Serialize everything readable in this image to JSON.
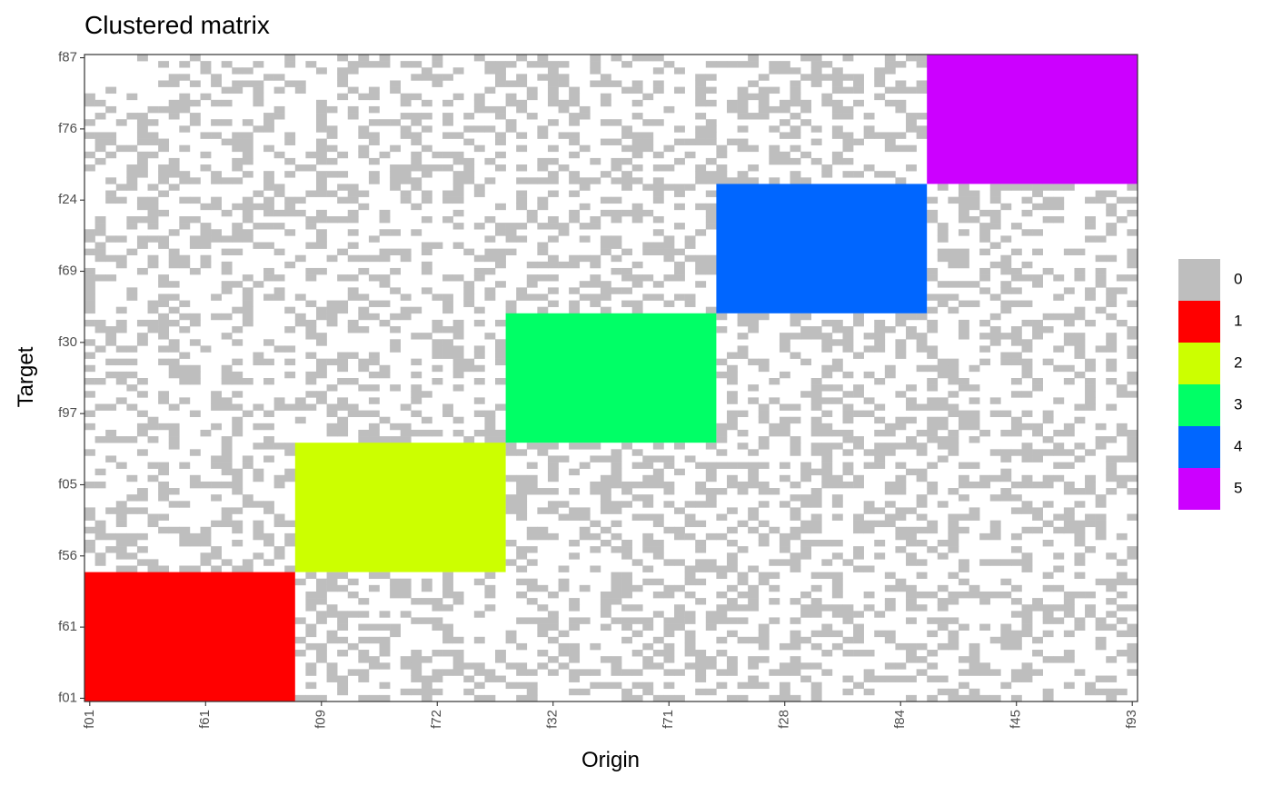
{
  "chart_data": {
    "type": "heatmap",
    "title": "Clustered matrix",
    "xlabel": "Origin",
    "ylabel": "Target",
    "x_tick_labels": [
      "f01",
      "f61",
      "f09",
      "f72",
      "f32",
      "f71",
      "f28",
      "f84",
      "f45",
      "f93"
    ],
    "y_tick_labels": [
      "f01",
      "f61",
      "f56",
      "f05",
      "f97",
      "f30",
      "f69",
      "f24",
      "f76",
      "f87"
    ],
    "n_rows": 100,
    "n_cols": 100,
    "background_value": 0,
    "background_fill_fraction": 0.35,
    "clusters": [
      {
        "value": 1,
        "rows": [
          1,
          20
        ],
        "cols": [
          1,
          20
        ]
      },
      {
        "value": 2,
        "rows": [
          21,
          40
        ],
        "cols": [
          21,
          40
        ]
      },
      {
        "value": 3,
        "rows": [
          41,
          60
        ],
        "cols": [
          41,
          60
        ]
      },
      {
        "value": 4,
        "rows": [
          61,
          80
        ],
        "cols": [
          61,
          80
        ]
      },
      {
        "value": 5,
        "rows": [
          81,
          100
        ],
        "cols": [
          81,
          100
        ]
      }
    ],
    "legend": [
      {
        "label": "0",
        "color": "#BEBEBE"
      },
      {
        "label": "1",
        "color": "#FF0000"
      },
      {
        "label": "2",
        "color": "#CCFF00"
      },
      {
        "label": "3",
        "color": "#00FF66"
      },
      {
        "label": "4",
        "color": "#0066FF"
      },
      {
        "label": "5",
        "color": "#CC00FF"
      }
    ],
    "legend_position": "right",
    "grid": false
  }
}
